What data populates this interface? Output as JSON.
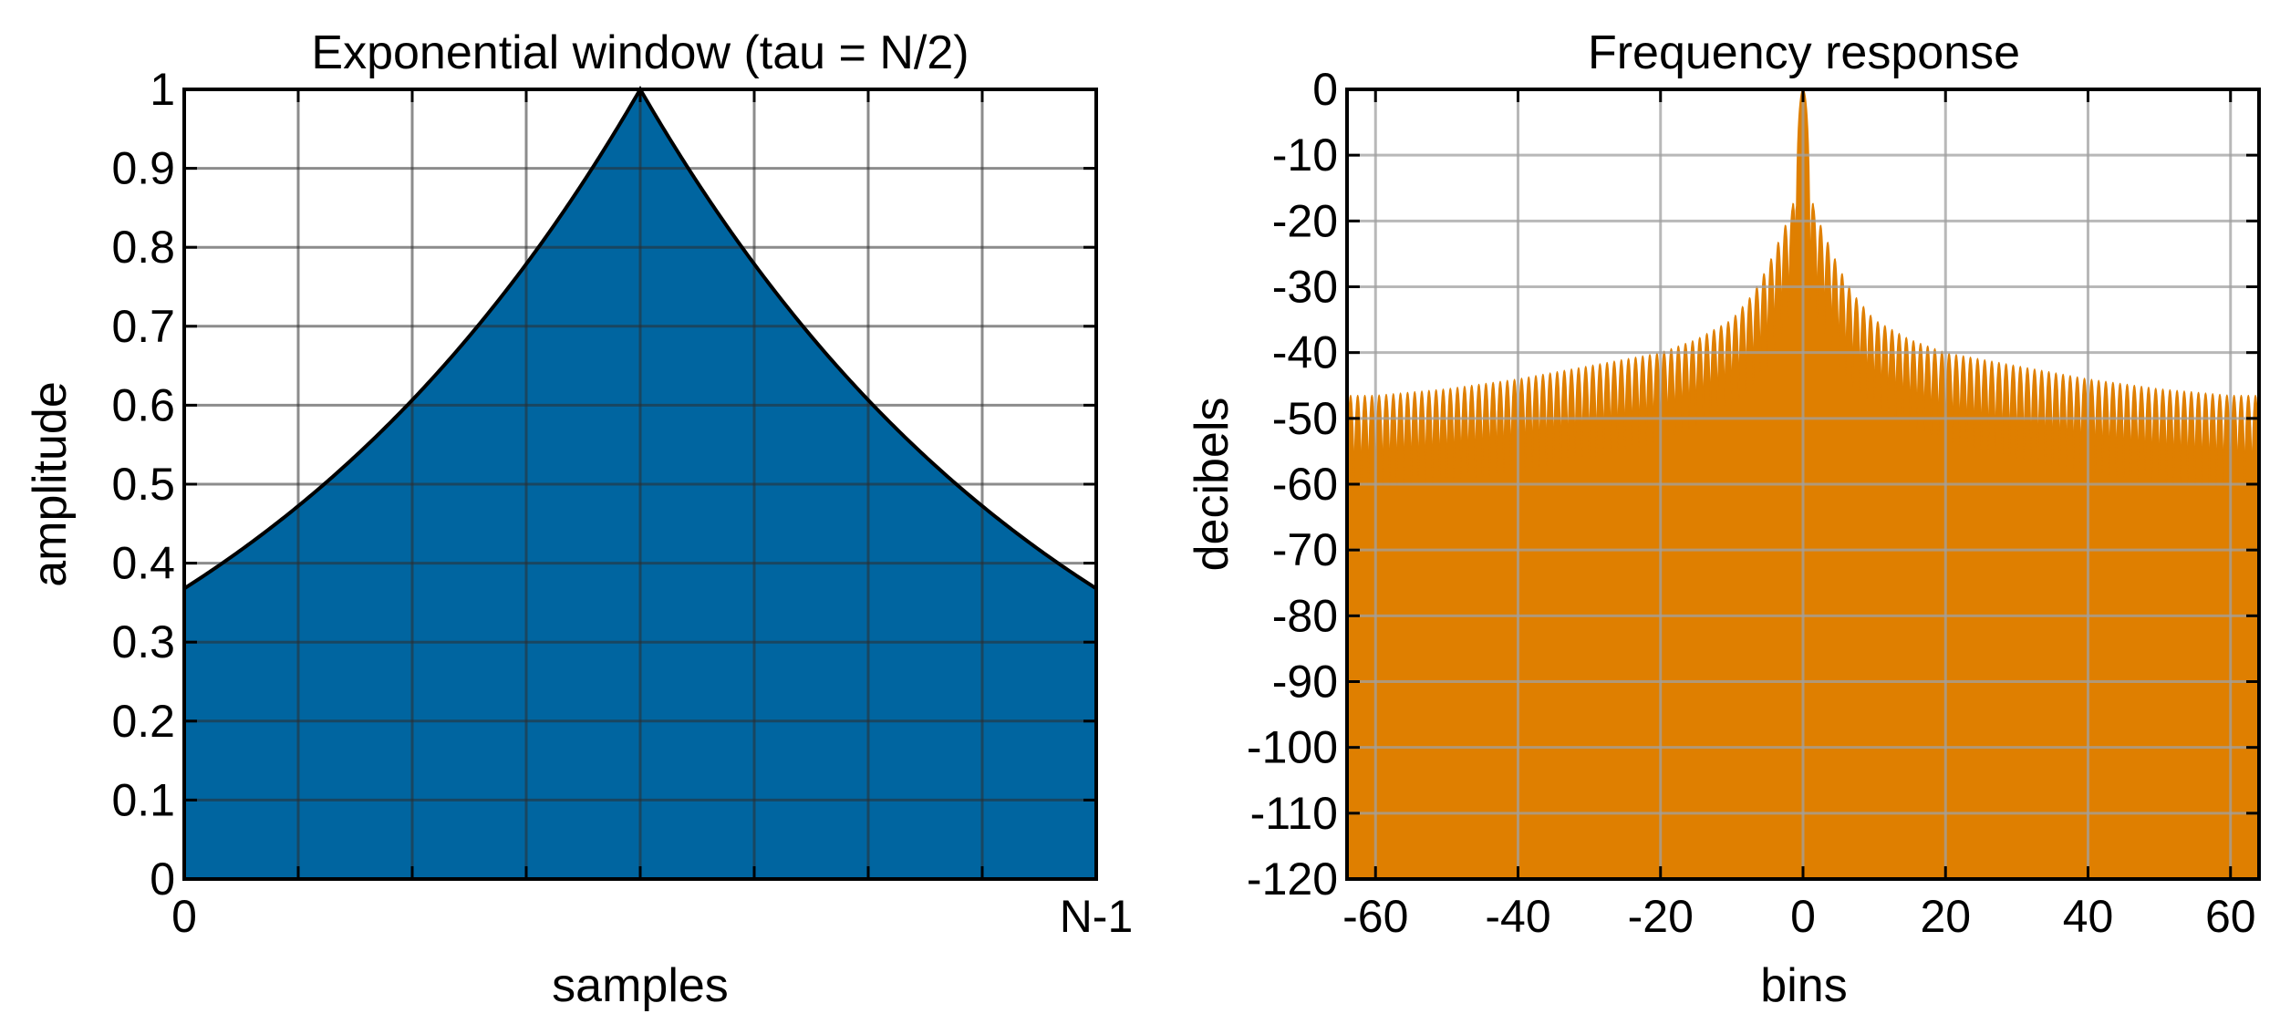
{
  "chart_data": [
    {
      "type": "area",
      "title": "Exponential window (tau = N/2)",
      "xlabel": "samples",
      "ylabel": "amplitude",
      "xlim": [
        0,
        1
      ],
      "ylim": [
        0,
        1
      ],
      "x_ticks": [
        {
          "value": 0,
          "label": "0"
        },
        {
          "value": 1,
          "label": "N-1"
        }
      ],
      "x_grid_divisions": 8,
      "y_ticks": [
        {
          "value": 0,
          "label": "0"
        },
        {
          "value": 0.1,
          "label": "0.1"
        },
        {
          "value": 0.2,
          "label": "0.2"
        },
        {
          "value": 0.3,
          "label": "0.3"
        },
        {
          "value": 0.4,
          "label": "0.4"
        },
        {
          "value": 0.5,
          "label": "0.5"
        },
        {
          "value": 0.6,
          "label": "0.6"
        },
        {
          "value": 0.7,
          "label": "0.7"
        },
        {
          "value": 0.8,
          "label": "0.8"
        },
        {
          "value": 0.9,
          "label": "0.9"
        },
        {
          "value": 1,
          "label": "1"
        }
      ],
      "grid": true,
      "fill_color": "#0065a0",
      "edge_color": "#000000",
      "x": [
        0,
        0.0625,
        0.125,
        0.1875,
        0.25,
        0.3125,
        0.375,
        0.4375,
        0.5,
        0.5625,
        0.625,
        0.6875,
        0.75,
        0.8125,
        0.875,
        0.9375,
        1
      ],
      "y": [
        0.368,
        0.417,
        0.472,
        0.535,
        0.607,
        0.687,
        0.779,
        0.882,
        1.0,
        0.882,
        0.779,
        0.687,
        0.607,
        0.535,
        0.472,
        0.417,
        0.368
      ]
    },
    {
      "type": "area",
      "title": "Frequency response",
      "xlabel": "bins",
      "ylabel": "decibels",
      "xlim": [
        -64,
        64
      ],
      "ylim": [
        -120,
        0
      ],
      "x_ticks": [
        {
          "value": -60,
          "label": "-60"
        },
        {
          "value": -40,
          "label": "-40"
        },
        {
          "value": -20,
          "label": "-20"
        },
        {
          "value": 0,
          "label": "0"
        },
        {
          "value": 20,
          "label": "20"
        },
        {
          "value": 40,
          "label": "40"
        },
        {
          "value": 60,
          "label": "60"
        }
      ],
      "y_ticks": [
        {
          "value": 0,
          "label": "0"
        },
        {
          "value": -10,
          "label": "-10"
        },
        {
          "value": -20,
          "label": "-20"
        },
        {
          "value": -30,
          "label": "-30"
        },
        {
          "value": -40,
          "label": "-40"
        },
        {
          "value": -50,
          "label": "-50"
        },
        {
          "value": -60,
          "label": "-60"
        },
        {
          "value": -70,
          "label": "-70"
        },
        {
          "value": -80,
          "label": "-80"
        },
        {
          "value": -90,
          "label": "-90"
        },
        {
          "value": -100,
          "label": "-100"
        },
        {
          "value": -110,
          "label": "-110"
        },
        {
          "value": -120,
          "label": "-120"
        }
      ],
      "grid": true,
      "fill_color": "#df7f00",
      "envelope": {
        "x": [
          -64,
          -60,
          -50,
          -40,
          -30,
          -20,
          -15,
          -10,
          -7,
          -5,
          -3,
          -1.5,
          0,
          1.5,
          3,
          5,
          7,
          10,
          15,
          20,
          30,
          40,
          50,
          60,
          64
        ],
        "y": [
          -46.5,
          -46.5,
          -45.5,
          -44,
          -42,
          -40,
          -38,
          -35,
          -31,
          -27,
          -22,
          -18,
          0,
          -18,
          -22,
          -27,
          -31,
          -35,
          -38,
          -40,
          -42,
          -44,
          -45.5,
          -46.5,
          -46.5
        ]
      },
      "floor_envelope": {
        "x": [
          -64,
          -60,
          -50,
          -40,
          -30,
          -20,
          -15,
          -10,
          -7,
          -5,
          -3,
          0,
          3,
          5,
          7,
          10,
          15,
          20,
          30,
          40,
          50,
          60,
          64
        ],
        "y": [
          -61,
          -60.5,
          -59.5,
          -58,
          -56,
          -53.5,
          -51,
          -48,
          -45,
          -42,
          -37,
          -30,
          -37,
          -42,
          -45,
          -48,
          -51,
          -53.5,
          -56,
          -58,
          -59.5,
          -60.5,
          -61
        ]
      },
      "mainlobe_half_width_bins": 1
    }
  ]
}
